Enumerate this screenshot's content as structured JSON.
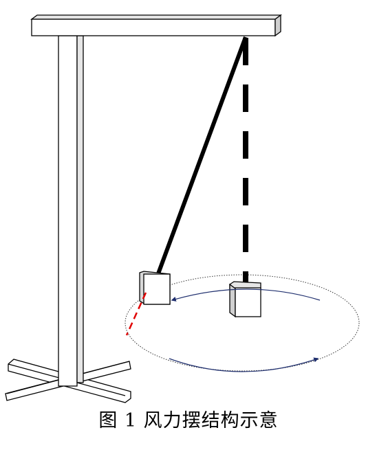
{
  "caption": "图 1 风力摆结构示意",
  "colors": {
    "stroke": "#000000",
    "laser": "#e00000",
    "arrow": "#1f2f6e",
    "frame_side": "#d9d9d9"
  }
}
